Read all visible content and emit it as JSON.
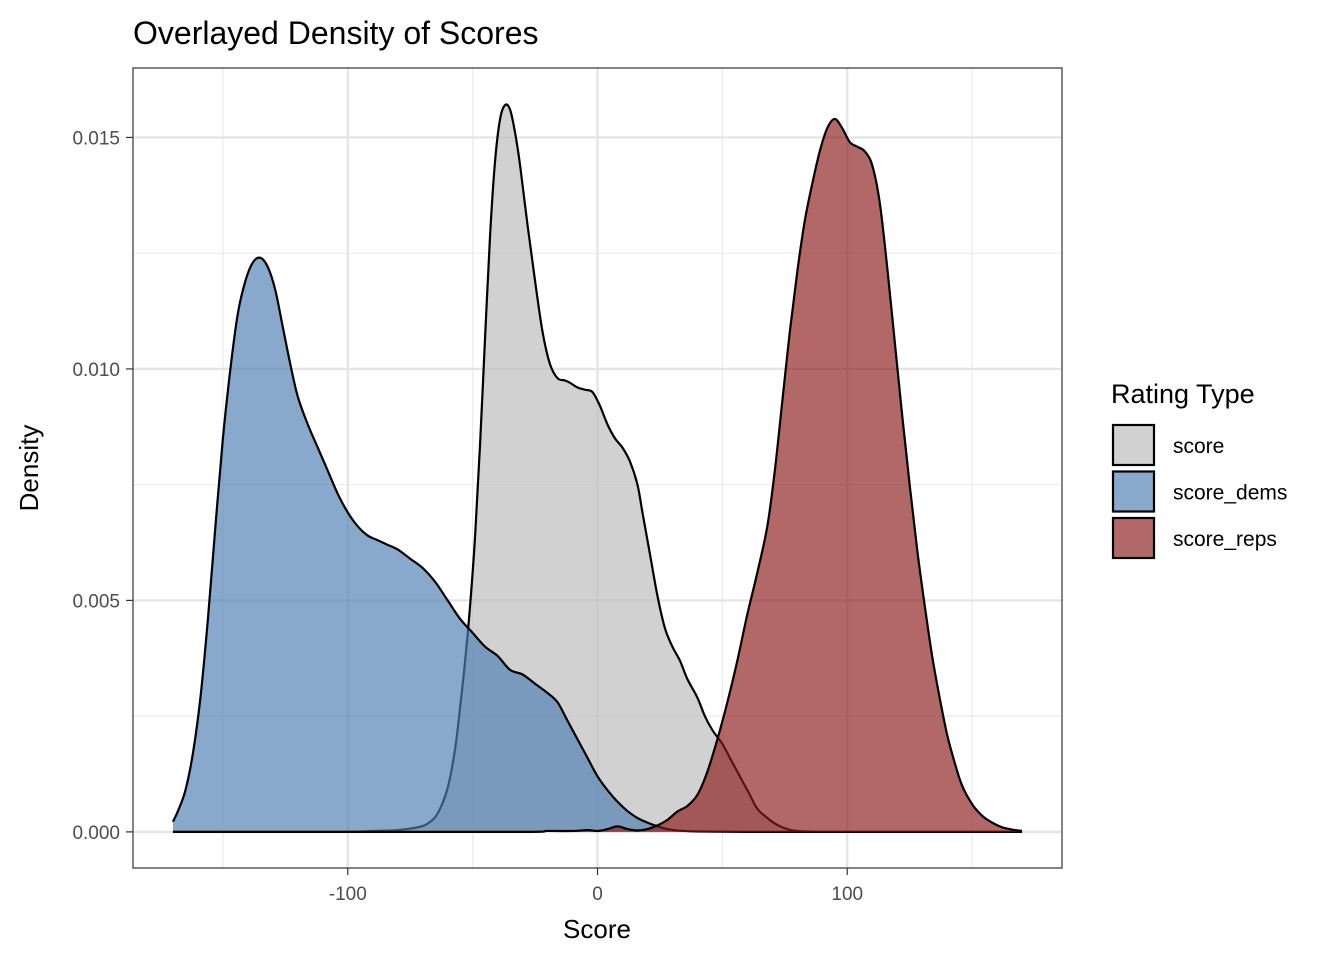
{
  "chart_data": {
    "type": "area",
    "title": "Overlayed Density of Scores",
    "xlabel": "Score",
    "ylabel": "Density",
    "xlim": [
      -186,
      186
    ],
    "ylim": [
      -0.00078,
      0.0165
    ],
    "x_ticks": [
      -100,
      0,
      100
    ],
    "x_tick_labels": [
      "-100",
      "0",
      "100"
    ],
    "x_minor_ticks": [
      -150,
      -50,
      50,
      150
    ],
    "y_ticks": [
      0.0,
      0.005,
      0.01,
      0.015
    ],
    "y_tick_labels": [
      "0.000",
      "0.005",
      "0.010",
      "0.015"
    ],
    "y_minor_ticks": [
      0.0025,
      0.0075,
      0.0125
    ],
    "grid": true,
    "legend": {
      "title": "Rating Type",
      "position": "right",
      "entries": [
        "score",
        "score_dems",
        "score_reps"
      ]
    },
    "series": [
      {
        "name": "score",
        "color": "#BDBDBD",
        "opacity": 0.7,
        "points": [
          [
            -170,
            0
          ],
          [
            -120,
            0
          ],
          [
            -100,
            0
          ],
          [
            -90,
            2e-05
          ],
          [
            -80,
            4e-05
          ],
          [
            -72,
            0.0001
          ],
          [
            -68,
            0.00018
          ],
          [
            -64,
            0.0004
          ],
          [
            -60,
            0.00095
          ],
          [
            -57,
            0.0018
          ],
          [
            -55,
            0.0027
          ],
          [
            -53,
            0.0037
          ],
          [
            -51,
            0.0049
          ],
          [
            -49,
            0.0064
          ],
          [
            -47,
            0.0084
          ],
          [
            -45,
            0.0107
          ],
          [
            -43,
            0.0129
          ],
          [
            -41,
            0.0145
          ],
          [
            -39,
            0.0154
          ],
          [
            -37,
            0.0157
          ],
          [
            -35,
            0.0156
          ],
          [
            -33,
            0.0151
          ],
          [
            -31,
            0.0144
          ],
          [
            -28,
            0.0131
          ],
          [
            -25,
            0.0119
          ],
          [
            -22,
            0.0108
          ],
          [
            -19,
            0.0101
          ],
          [
            -16,
            0.0098
          ],
          [
            -13,
            0.00975
          ],
          [
            -11,
            0.0097
          ],
          [
            -8,
            0.0096
          ],
          [
            -5,
            0.00955
          ],
          [
            -2,
            0.0095
          ],
          [
            1,
            0.0092
          ],
          [
            4,
            0.0088
          ],
          [
            7,
            0.0085
          ],
          [
            10,
            0.0083
          ],
          [
            13,
            0.008
          ],
          [
            16,
            0.0075
          ],
          [
            18,
            0.0069
          ],
          [
            21,
            0.006
          ],
          [
            24,
            0.0051
          ],
          [
            27,
            0.0044
          ],
          [
            30,
            0.004
          ],
          [
            33,
            0.0037
          ],
          [
            36,
            0.0033
          ],
          [
            40,
            0.0029
          ],
          [
            43,
            0.0025
          ],
          [
            46,
            0.0022
          ],
          [
            50,
            0.0019
          ],
          [
            53,
            0.0016
          ],
          [
            55,
            0.0014
          ],
          [
            58,
            0.0011
          ],
          [
            61,
            0.0008
          ],
          [
            64,
            0.0005
          ],
          [
            68,
            0.0003
          ],
          [
            72,
            0.00015
          ],
          [
            76,
            6e-05
          ],
          [
            80,
            2e-05
          ],
          [
            90,
            0
          ],
          [
            120,
            0
          ],
          [
            170,
            0
          ]
        ]
      },
      {
        "name": "score_dems",
        "color": "#4E7FB2",
        "opacity": 0.67,
        "points": [
          [
            -170,
            0.00022
          ],
          [
            -168,
            0.00045
          ],
          [
            -165,
            0.0009
          ],
          [
            -162,
            0.0017
          ],
          [
            -159,
            0.0029
          ],
          [
            -156,
            0.0046
          ],
          [
            -153,
            0.0066
          ],
          [
            -150,
            0.0085
          ],
          [
            -147,
            0.01
          ],
          [
            -144,
            0.0112
          ],
          [
            -141,
            0.0119
          ],
          [
            -138,
            0.0123
          ],
          [
            -135,
            0.0124
          ],
          [
            -132,
            0.0122
          ],
          [
            -129,
            0.0117
          ],
          [
            -126,
            0.0109
          ],
          [
            -123,
            0.0101
          ],
          [
            -120,
            0.0094
          ],
          [
            -116,
            0.0088
          ],
          [
            -112,
            0.0083
          ],
          [
            -108,
            0.0078
          ],
          [
            -104,
            0.0073
          ],
          [
            -100,
            0.0069
          ],
          [
            -96,
            0.0066
          ],
          [
            -92,
            0.0064
          ],
          [
            -88,
            0.0063
          ],
          [
            -84,
            0.0062
          ],
          [
            -80,
            0.0061
          ],
          [
            -75,
            0.0059
          ],
          [
            -70,
            0.0057
          ],
          [
            -65,
            0.0054
          ],
          [
            -60,
            0.005
          ],
          [
            -55,
            0.0046
          ],
          [
            -50,
            0.0043
          ],
          [
            -45,
            0.004
          ],
          [
            -40,
            0.0038
          ],
          [
            -35,
            0.0035
          ],
          [
            -30,
            0.0034
          ],
          [
            -25,
            0.0032
          ],
          [
            -20,
            0.003
          ],
          [
            -16,
            0.0028
          ],
          [
            -12,
            0.0024
          ],
          [
            -8,
            0.002
          ],
          [
            -4,
            0.0016
          ],
          [
            0,
            0.0012
          ],
          [
            4,
            0.0009
          ],
          [
            8,
            0.00065
          ],
          [
            12,
            0.00045
          ],
          [
            16,
            0.0003
          ],
          [
            20,
            0.0002
          ],
          [
            24,
            0.00012
          ],
          [
            28,
            6e-05
          ],
          [
            32,
            3e-05
          ],
          [
            40,
            1e-05
          ],
          [
            60,
            0
          ],
          [
            100,
            0
          ],
          [
            170,
            0
          ]
        ]
      },
      {
        "name": "score_reps",
        "color": "#8B1A1A",
        "opacity": 0.66,
        "points": [
          [
            -170,
            0
          ],
          [
            -100,
            0
          ],
          [
            -30,
            0
          ],
          [
            -20,
            2e-05
          ],
          [
            -10,
            2e-05
          ],
          [
            -4,
            4e-05
          ],
          [
            0,
            2e-05
          ],
          [
            4,
            6e-05
          ],
          [
            8,
            0.00012
          ],
          [
            12,
            6e-05
          ],
          [
            16,
            3e-05
          ],
          [
            20,
            6e-05
          ],
          [
            24,
            0.00014
          ],
          [
            28,
            0.00026
          ],
          [
            32,
            0.00044
          ],
          [
            36,
            0.00056
          ],
          [
            40,
            0.0008
          ],
          [
            44,
            0.0013
          ],
          [
            48,
            0.002
          ],
          [
            52,
            0.0028
          ],
          [
            56,
            0.0037
          ],
          [
            60,
            0.0047
          ],
          [
            64,
            0.0056
          ],
          [
            68,
            0.0066
          ],
          [
            71,
            0.0078
          ],
          [
            74,
            0.0093
          ],
          [
            77,
            0.0108
          ],
          [
            80,
            0.0121
          ],
          [
            83,
            0.0132
          ],
          [
            86,
            0.014
          ],
          [
            89,
            0.0147
          ],
          [
            92,
            0.0152
          ],
          [
            95,
            0.0154
          ],
          [
            98,
            0.0152
          ],
          [
            101,
            0.0149
          ],
          [
            104,
            0.0148
          ],
          [
            107,
            0.0147
          ],
          [
            110,
            0.0144
          ],
          [
            113,
            0.0136
          ],
          [
            116,
            0.0122
          ],
          [
            119,
            0.0106
          ],
          [
            122,
            0.009
          ],
          [
            125,
            0.0075
          ],
          [
            128,
            0.0061
          ],
          [
            131,
            0.0049
          ],
          [
            134,
            0.0038
          ],
          [
            137,
            0.0029
          ],
          [
            140,
            0.0021
          ],
          [
            143,
            0.0015
          ],
          [
            146,
            0.001
          ],
          [
            150,
            0.0006
          ],
          [
            154,
            0.00035
          ],
          [
            158,
            0.0002
          ],
          [
            162,
            0.0001
          ],
          [
            166,
            5e-05
          ],
          [
            170,
            2e-05
          ]
        ]
      }
    ]
  }
}
